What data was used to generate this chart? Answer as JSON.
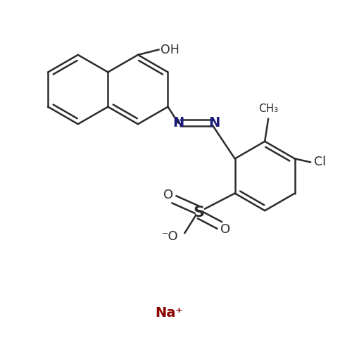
{
  "bg_color": "#ffffff",
  "line_color": "#2c2c2c",
  "lw": 1.8,
  "figsize": [
    5.0,
    5.0
  ],
  "dpi": 100,
  "xlim": [
    0,
    10
  ],
  "ylim": [
    0,
    10
  ]
}
